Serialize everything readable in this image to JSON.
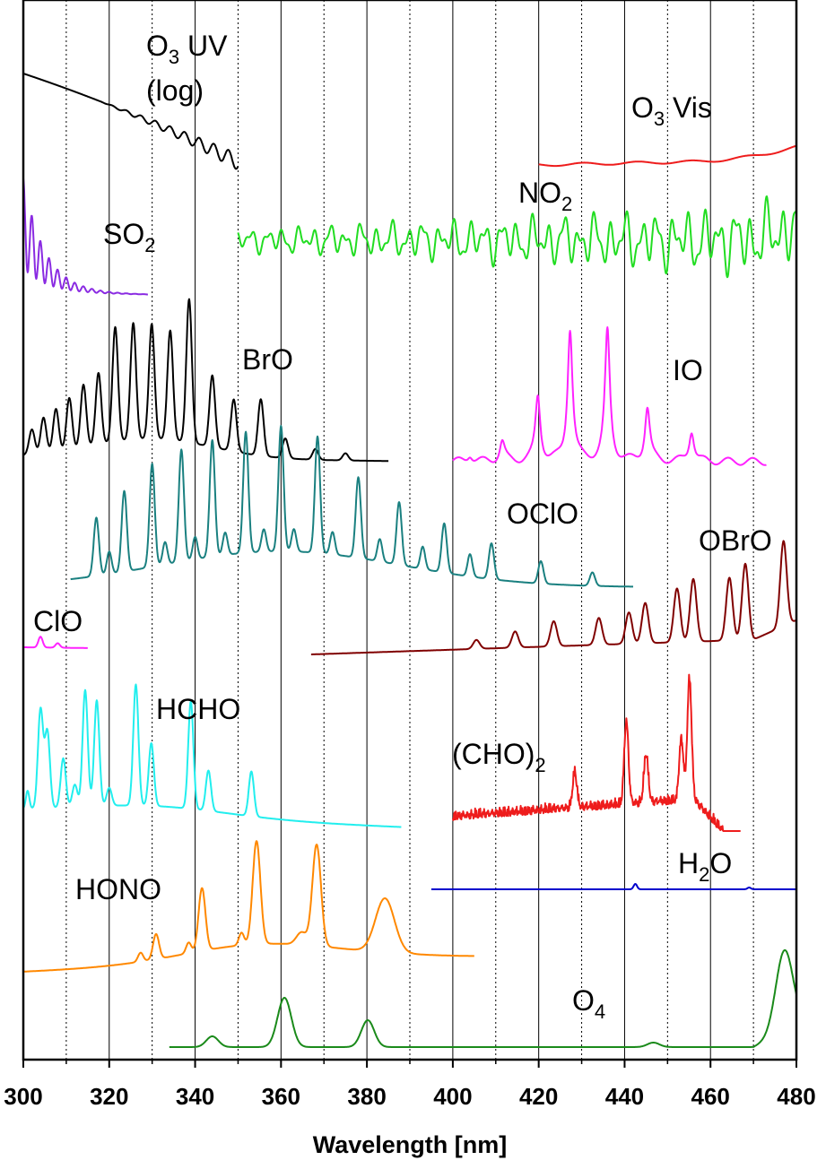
{
  "chart_data": {
    "type": "line",
    "xlabel": "Wavelength [nm]",
    "xlim": [
      300,
      480
    ],
    "x_ticks": [
      "300",
      "320",
      "340",
      "360",
      "380",
      "400",
      "420",
      "440",
      "460",
      "480"
    ],
    "grid": "vertical lines every 10 nm (solid at 20 nm steps, dotted in between)",
    "y_axis": "none (stacked spectra, offset vertically)",
    "series": [
      {
        "key": "o3uv",
        "name": "O3 UV (log)",
        "color": "#000000",
        "range": [
          300,
          350
        ]
      },
      {
        "key": "o3vis",
        "name": "O3 Vis",
        "color": "#ee1c1c",
        "range": [
          420,
          480
        ]
      },
      {
        "key": "so2",
        "name": "SO2",
        "color": "#8a2be2",
        "range": [
          300,
          329
        ]
      },
      {
        "key": "no2",
        "name": "NO2",
        "color": "#22dd22",
        "range": [
          350,
          480
        ]
      },
      {
        "key": "bro",
        "name": "BrO",
        "color": "#000000",
        "range": [
          300,
          385
        ],
        "peaks_nm": [
          302,
          304.7,
          307.6,
          310.7,
          314,
          317.5,
          321.4,
          325.6,
          329.9,
          334.2,
          338.6,
          344,
          349,
          355.3,
          361,
          368,
          375
        ]
      },
      {
        "key": "io",
        "name": "IO",
        "color": "#ff22ff",
        "range": [
          400,
          473
        ],
        "peaks_nm": [
          404,
          411.5,
          419.8,
          427.3,
          436,
          445.3,
          455.6
        ]
      },
      {
        "key": "oclo",
        "name": "OClO",
        "color": "#1a8080",
        "range": [
          311,
          442
        ],
        "peaks_nm": [
          317,
          323.5,
          330,
          336.8,
          344,
          351.8,
          360,
          368.5,
          378,
          387.5,
          398,
          409,
          420.5,
          432.5
        ]
      },
      {
        "key": "obro",
        "name": "OBrO",
        "color": "#800000",
        "range": [
          367,
          480
        ],
        "peaks_nm": [
          405.5,
          414.5,
          423.5,
          434,
          441,
          444.8,
          452.2,
          456,
          464.4,
          468.1,
          477
        ]
      },
      {
        "key": "clo",
        "name": "ClO",
        "color": "#ff22ff",
        "range": [
          300,
          315
        ]
      },
      {
        "key": "hcho",
        "name": "HCHO",
        "color": "#22eeee",
        "range": [
          300,
          388
        ],
        "peaks_nm": [
          304,
          305.6,
          309.3,
          314.4,
          317.1,
          326.2,
          329.8,
          339,
          343.1,
          353.1
        ]
      },
      {
        "key": "cho2",
        "name": "(CHO)2",
        "color": "#ee1c1c",
        "range": [
          400,
          467
        ],
        "peaks_nm": [
          428.4,
          440.4,
          445,
          453.2,
          455.1
        ]
      },
      {
        "key": "h2o",
        "name": "H2O",
        "color": "#0000cc",
        "range": [
          395,
          480
        ]
      },
      {
        "key": "hono",
        "name": "HONO",
        "color": "#ff8800",
        "range": [
          300,
          405
        ],
        "peaks_nm": [
          330.9,
          341.6,
          354.3,
          368.3,
          384.2
        ]
      },
      {
        "key": "o4",
        "name": "O4",
        "color": "#1a8a1a",
        "range": [
          334,
          480
        ],
        "peaks_nm": [
          344,
          360.8,
          380.2,
          446.7,
          477.2
        ]
      }
    ]
  },
  "labels": {
    "o3uv_main": "O",
    "o3uv_sub": "3",
    "o3uv_tail": " UV",
    "o3uv_log": "(log)",
    "o3vis_main": "O",
    "o3vis_sub": "3",
    "o3vis_tail": " Vis",
    "so2_main": "SO",
    "so2_sub": "2",
    "no2_main": "NO",
    "no2_sub": "2",
    "bro": "BrO",
    "io": "IO",
    "oclo": "OClO",
    "obro": "OBrO",
    "clo": "ClO",
    "hcho": "HCHO",
    "cho2_main": "(CHO)",
    "cho2_sub": "2",
    "h2o_main": "H",
    "h2o_sub": "2",
    "h2o_tail": "O",
    "hono": "HONO",
    "o4_main": "O",
    "o4_sub": "4"
  }
}
